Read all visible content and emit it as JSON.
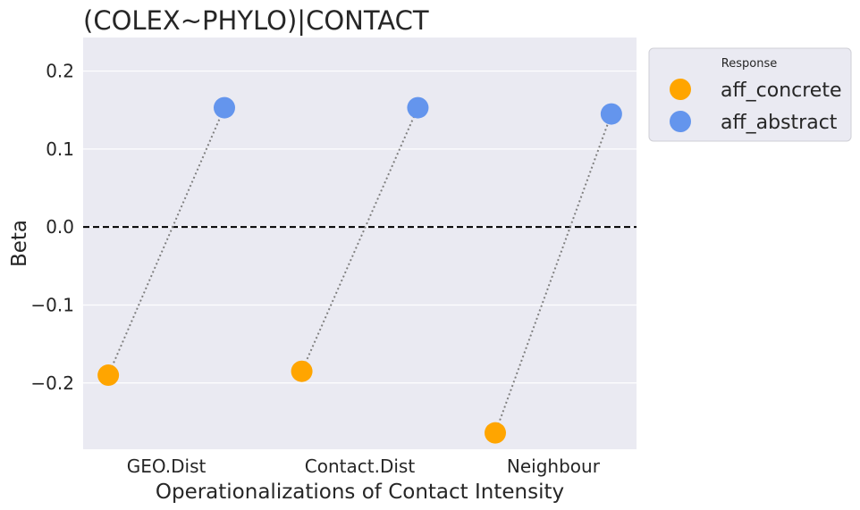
{
  "chart_data": {
    "type": "scatter",
    "title": "(COLEX~PHYLO)|CONTACT",
    "xlabel": "Operationalizations of Contact Intensity",
    "ylabel": "Beta",
    "categories": [
      "GEO.Dist",
      "Contact.Dist",
      "Neighbour"
    ],
    "ylim": [
      -0.285,
      0.243
    ],
    "yticks": [
      0.2,
      0.1,
      0.0,
      -0.1,
      -0.2
    ],
    "ytick_labels": [
      "0.2",
      "0.1",
      "0.0",
      "−0.1",
      "−0.2"
    ],
    "reference_line": 0.0,
    "grid": true,
    "legend": {
      "title": "Response",
      "placement": "outside-top-right"
    },
    "series": [
      {
        "name": "aff_concrete",
        "color": "#FFA500",
        "x_offset": -0.3,
        "values": [
          -0.19,
          -0.185,
          -0.264
        ]
      },
      {
        "name": "aff_abstract",
        "color": "#6495ED",
        "x_offset": 0.3,
        "values": [
          0.153,
          0.153,
          0.145
        ]
      }
    ]
  }
}
